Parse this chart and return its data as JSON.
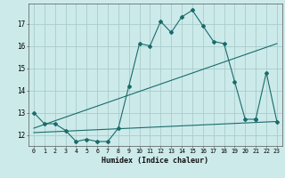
{
  "xlabel": "Humidex (Indice chaleur)",
  "bg_color": "#cceaea",
  "grid_color": "#aacccc",
  "line_color": "#1a6b6b",
  "series1_x": [
    0,
    1,
    2,
    3,
    4,
    5,
    6,
    7,
    8,
    9,
    10,
    11,
    12,
    13,
    14,
    15,
    16,
    17,
    18,
    19,
    20,
    21
  ],
  "series1_y": [
    13.0,
    12.5,
    12.5,
    12.2,
    11.7,
    11.8,
    11.7,
    11.7,
    12.3,
    14.2,
    16.1,
    16.0,
    17.1,
    16.6,
    17.3,
    17.6,
    16.9,
    16.2,
    16.1,
    14.4,
    12.7,
    12.7
  ],
  "series2_x": [
    21,
    22,
    23
  ],
  "series2_y": [
    12.7,
    14.8,
    12.6
  ],
  "series3_x": [
    0,
    23
  ],
  "series3_y": [
    12.3,
    16.1
  ],
  "series4_x": [
    0,
    23
  ],
  "series4_y": [
    12.1,
    12.6
  ],
  "xlim": [
    -0.5,
    23.5
  ],
  "ylim": [
    11.5,
    17.9
  ],
  "yticks": [
    12,
    13,
    14,
    15,
    16,
    17
  ],
  "xticks": [
    0,
    1,
    2,
    3,
    4,
    5,
    6,
    7,
    8,
    9,
    10,
    11,
    12,
    13,
    14,
    15,
    16,
    17,
    18,
    19,
    20,
    21,
    22,
    23
  ]
}
